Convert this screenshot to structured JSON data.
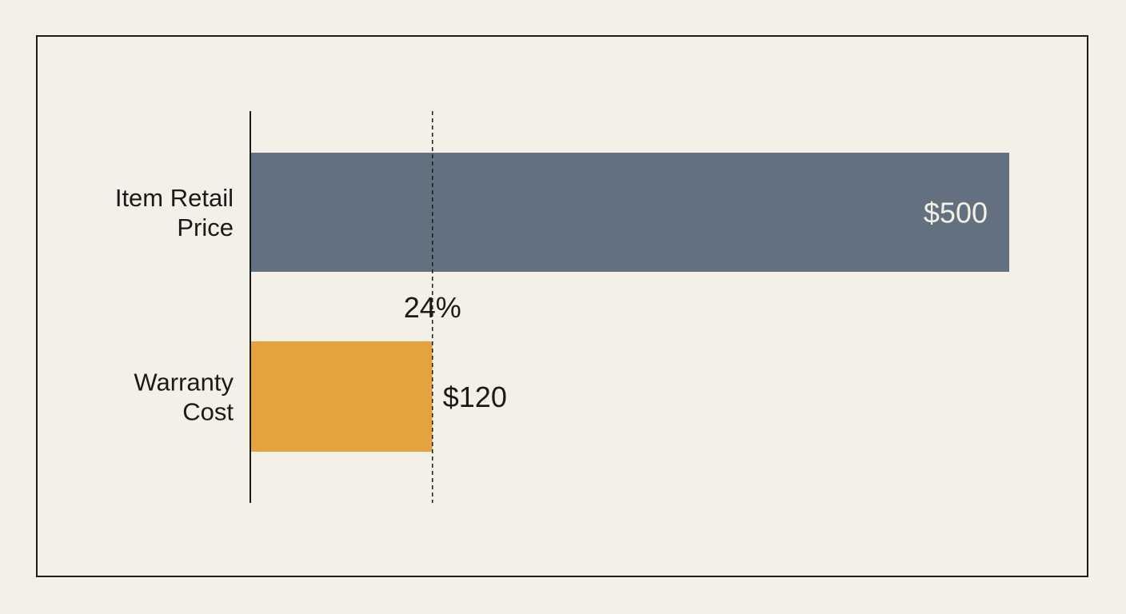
{
  "chart_data": {
    "type": "bar",
    "orientation": "horizontal",
    "categories": [
      [
        "Item Retail",
        "Price"
      ],
      [
        "Warranty",
        "Cost"
      ]
    ],
    "values": [
      500,
      120
    ],
    "value_labels": [
      "$500",
      "$120"
    ],
    "xlim": [
      0,
      500
    ],
    "reference_line": {
      "value": 120,
      "label": "24%",
      "style": "dashed"
    },
    "colors": [
      "#637080",
      "#e3a43f"
    ],
    "value_label_colors": [
      "#f3f1e7",
      "#1a1a1a"
    ],
    "value_label_placement": [
      "inside-end",
      "outside-end"
    ],
    "grid": false,
    "legend": "none"
  }
}
